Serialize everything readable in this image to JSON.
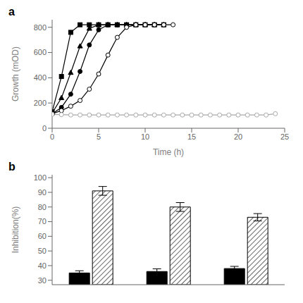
{
  "chart_data": [
    {
      "type": "line",
      "title": "a",
      "xlabel": "Time (h)",
      "ylabel": "Growth (mOD)",
      "xlim": [
        0,
        25
      ],
      "ylim": [
        0,
        860
      ],
      "xticks": [
        0,
        5,
        10,
        15,
        20,
        25
      ],
      "yticks": [
        0,
        200,
        400,
        600,
        800
      ],
      "grid": false,
      "series": [
        {
          "color": "black",
          "marker": "square",
          "x": [
            0,
            1,
            2,
            3,
            4,
            5,
            6,
            7,
            8,
            9,
            10,
            11,
            12
          ],
          "values": [
            130,
            410,
            760,
            820,
            820,
            820,
            820,
            820,
            820,
            820,
            820,
            820,
            820
          ]
        },
        {
          "color": "black",
          "marker": "triangle",
          "x": [
            0,
            1,
            2,
            3,
            4,
            5,
            6,
            7,
            8,
            9,
            10,
            11,
            12
          ],
          "values": [
            120,
            240,
            440,
            650,
            790,
            820,
            820,
            820,
            820,
            820,
            820,
            820,
            820
          ]
        },
        {
          "color": "black",
          "marker": "circle",
          "x": [
            0,
            1,
            2,
            3,
            4,
            5,
            6,
            7,
            8,
            9,
            10,
            11,
            12
          ],
          "values": [
            115,
            165,
            270,
            450,
            660,
            780,
            820,
            820,
            820,
            820,
            820,
            820,
            820
          ]
        },
        {
          "color": "black",
          "marker": "open-circle",
          "x": [
            0,
            1,
            2,
            3,
            4,
            5,
            6,
            7,
            8,
            9,
            10,
            11,
            12,
            13
          ],
          "values": [
            115,
            140,
            175,
            220,
            310,
            430,
            580,
            720,
            800,
            820,
            820,
            820,
            820,
            820
          ]
        },
        {
          "color": "#aaaaaa",
          "marker": "open-circle",
          "x": [
            0,
            1,
            2,
            3,
            4,
            5,
            6,
            7,
            8,
            9,
            10,
            11,
            12,
            13,
            14,
            15,
            16,
            17,
            18,
            19,
            20,
            21,
            22,
            23,
            24
          ],
          "values": [
            110,
            108,
            105,
            105,
            105,
            105,
            105,
            105,
            105,
            105,
            105,
            105,
            105,
            105,
            105,
            105,
            105,
            105,
            105,
            105,
            105,
            105,
            105,
            105,
            115
          ]
        }
      ]
    },
    {
      "type": "bar",
      "title": "b",
      "ylabel": "Inhibition(%)",
      "ylim": [
        27,
        102
      ],
      "yticks": [
        30,
        40,
        50,
        60,
        70,
        80,
        90,
        100
      ],
      "grid": false,
      "tick_labels": "y",
      "categories": [
        null,
        null,
        null
      ],
      "series": [
        {
          "color": "black",
          "values": [
            35,
            36,
            38
          ],
          "errors": [
            1.5,
            1.8,
            1.5
          ]
        },
        {
          "color": "white",
          "values": [
            91,
            80,
            73
          ],
          "errors": [
            3,
            3,
            2.5
          ]
        }
      ]
    }
  ]
}
